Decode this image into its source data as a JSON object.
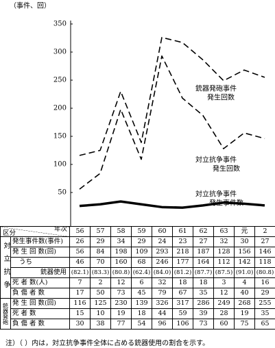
{
  "chart_data": {
    "type": "line",
    "y_label": "（事件、回）",
    "categories": [
      "56",
      "57",
      "58",
      "59",
      "60",
      "61",
      "62",
      "63",
      "元",
      "2"
    ],
    "ylim": [
      0,
      350
    ],
    "yticks": [
      50,
      100,
      150,
      200,
      250,
      300,
      350
    ],
    "series": [
      {
        "label": [
          "銃器発砲事件",
          "発生回数"
        ],
        "color": "#000000",
        "line_style": "dashed",
        "line_width": 1.6,
        "values": [
          116,
          125,
          230,
          139,
          326,
          317,
          286,
          249,
          268,
          255
        ]
      },
      {
        "label": [
          "対立抗争事件",
          "発生回数"
        ],
        "color": "#000000",
        "line_style": "dashed",
        "line_width": 1.6,
        "values": [
          56,
          84,
          198,
          109,
          293,
          218,
          187,
          128,
          156,
          146
        ]
      },
      {
        "label": [
          "対立抗争事件",
          "発生事件数"
        ],
        "color": "#000000",
        "line_style": "solid",
        "line_width": 3.5,
        "values": [
          26,
          29,
          34,
          29,
          24,
          23,
          27,
          32,
          30,
          27
        ]
      }
    ]
  },
  "table": {
    "corner_top": "年次",
    "corner_bottom": "区分",
    "groups": [
      {
        "label": "対立抗争",
        "rows": [
          {
            "label": "発生事件数(事件)",
            "values": [
              26,
              29,
              34,
              29,
              24,
              23,
              27,
              32,
              30,
              27
            ]
          },
          {
            "label": "発 生 回 数(回)",
            "values": [
              56,
              84,
              198,
              109,
              293,
              218,
              187,
              128,
              156,
              146
            ]
          },
          {
            "label": "うち",
            "sublabel": "銃器使用",
            "values": [
              46,
              70,
              160,
              68,
              246,
              177,
              164,
              112,
              142,
              118
            ],
            "shares": [
              "(82.1)",
              "(83.3)",
              "(80.8)",
              "(62.4)",
              "(84.0)",
              "(81.2)",
              "(87.7)",
              "(87.5)",
              "(91.0)",
              "(80.8)"
            ]
          },
          {
            "label": "死 者 数(人)",
            "values": [
              7,
              2,
              12,
              6,
              32,
              18,
              18,
              3,
              4,
              16
            ]
          },
          {
            "label": "負 傷 者 数",
            "values": [
              17,
              50,
              73,
              45,
              79,
              67,
              35,
              12,
              40,
              29
            ]
          }
        ]
      },
      {
        "label": "銃器発砲",
        "rows": [
          {
            "label": "発 生 回 数(回)",
            "values": [
              116,
              125,
              230,
              139,
              326,
              317,
              286,
              249,
              268,
              255
            ]
          },
          {
            "label": "死 者 数",
            "values": [
              15,
              10,
              19,
              18,
              44,
              59,
              39,
              28,
              19,
              35
            ]
          },
          {
            "label": "負 傷 者 数",
            "values": [
              30,
              38,
              77,
              54,
              96,
              106,
              73,
              60,
              75,
              65
            ]
          }
        ]
      }
    ],
    "note": "注）（ ）内は，対立抗争事件全体に占める銃器使用の割合を示す。"
  }
}
